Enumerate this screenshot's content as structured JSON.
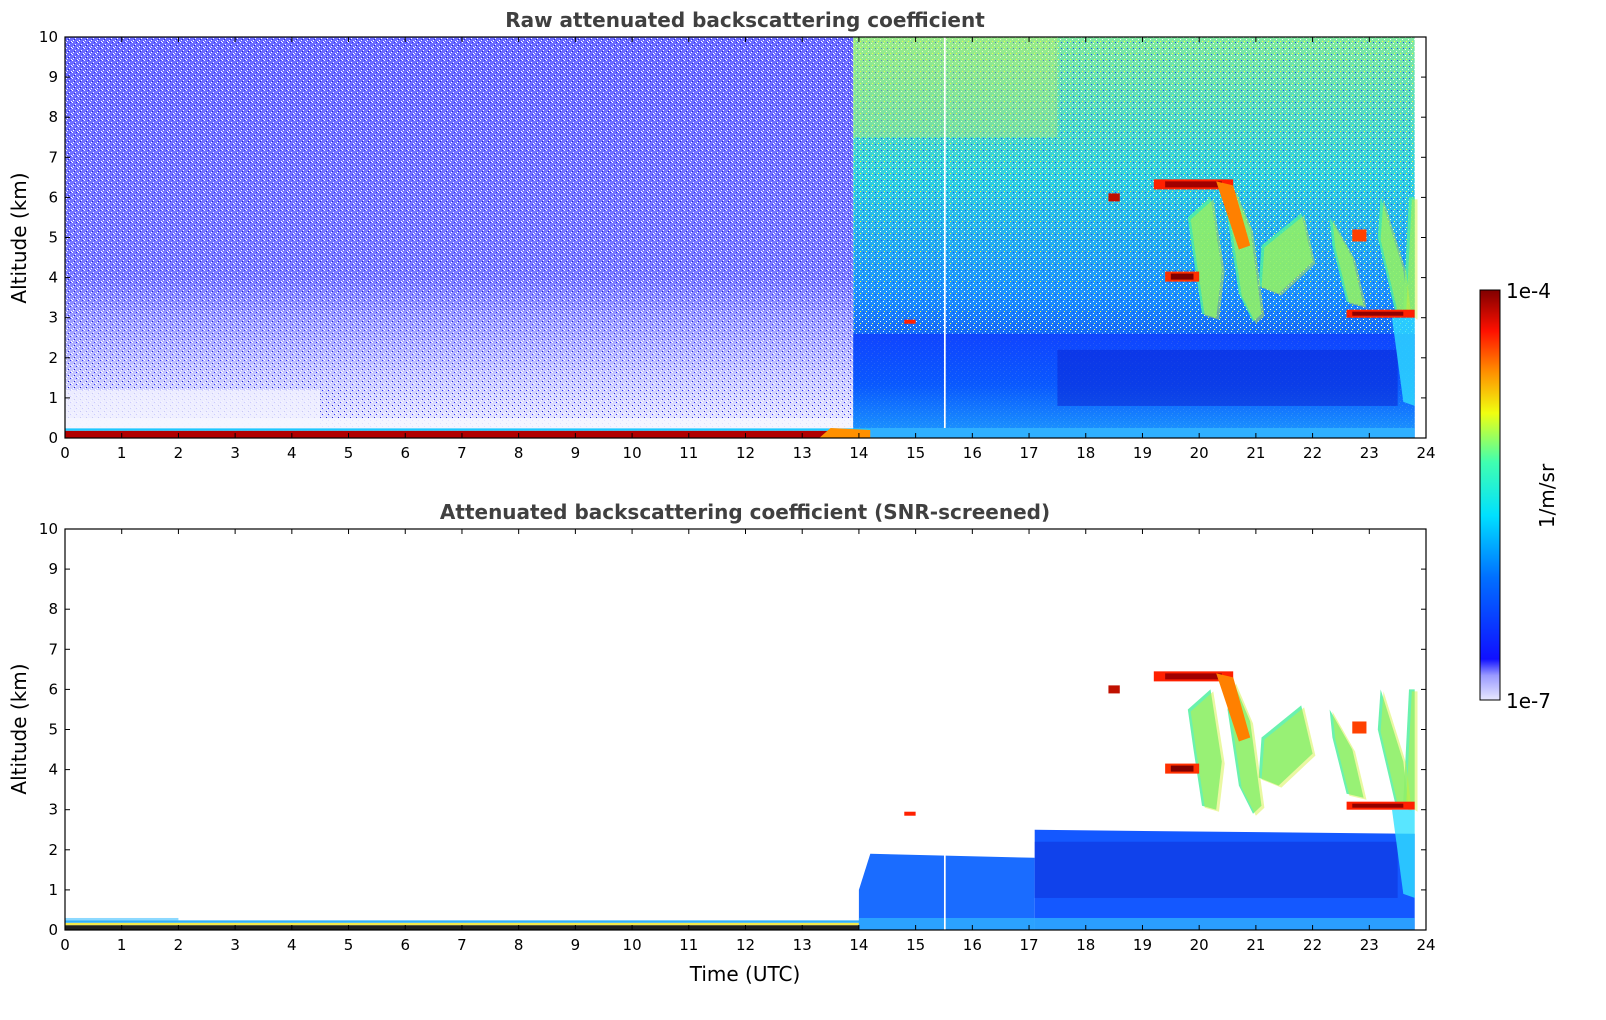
{
  "chart_data": [
    {
      "type": "heatmap",
      "title": "Raw attenuated backscattering coefficient",
      "xlabel": "",
      "ylabel": "Altitude (km)",
      "xlim": [
        0,
        24
      ],
      "ylim": [
        0,
        10
      ],
      "xticks": [
        0,
        1,
        2,
        3,
        4,
        5,
        6,
        7,
        8,
        9,
        10,
        11,
        12,
        13,
        14,
        15,
        16,
        17,
        18,
        19,
        20,
        21,
        22,
        23,
        24
      ],
      "yticks": [
        0,
        1,
        2,
        3,
        4,
        5,
        6,
        7,
        8,
        9,
        10
      ],
      "colormap": "jet",
      "grid": false,
      "features": [
        {
          "time": [
            0,
            13.9
          ],
          "altitude": [
            0,
            10
          ],
          "level": "low / sparse noise (night)"
        },
        {
          "time": [
            13.9,
            23.8
          ],
          "altitude": [
            0,
            10
          ],
          "level": "higher background (day)"
        },
        {
          "time": [
            0,
            14.2
          ],
          "altitude": [
            0,
            0.2
          ],
          "level": "saturated surface layer"
        },
        {
          "time": [
            13.9,
            23.8
          ],
          "altitude": [
            0,
            2.5
          ],
          "level": "boundary layer"
        },
        {
          "time": [
            19.2,
            20.6
          ],
          "altitude": [
            6.2,
            6.4
          ],
          "level": "strong cloud"
        },
        {
          "time": [
            18.4,
            18.6
          ],
          "altitude": [
            5.9,
            6.1
          ],
          "level": "strong cloud"
        },
        {
          "time": [
            19.4,
            20.0
          ],
          "altitude": [
            3.9,
            4.1
          ],
          "level": "strong cloud"
        },
        {
          "time": [
            22.6,
            23.8
          ],
          "altitude": [
            3.0,
            3.2
          ],
          "level": "strong cloud"
        },
        {
          "time": [
            19.8,
            23.8
          ],
          "altitude": [
            3.0,
            6.0
          ],
          "level": "cirrus fall streaks"
        }
      ]
    },
    {
      "type": "heatmap",
      "title": "Attenuated backscattering coefficient (SNR-screened)",
      "xlabel": "Time (UTC)",
      "ylabel": "Altitude (km)",
      "xlim": [
        0,
        24
      ],
      "ylim": [
        0,
        10
      ],
      "xticks": [
        0,
        1,
        2,
        3,
        4,
        5,
        6,
        7,
        8,
        9,
        10,
        11,
        12,
        13,
        14,
        15,
        16,
        17,
        18,
        19,
        20,
        21,
        22,
        23,
        24
      ],
      "yticks": [
        0,
        1,
        2,
        3,
        4,
        5,
        6,
        7,
        8,
        9,
        10
      ],
      "colormap": "jet",
      "grid": false,
      "features": [
        {
          "time": [
            0,
            14.2
          ],
          "altitude": [
            0,
            0.2
          ],
          "level": "surface layer"
        },
        {
          "time": [
            14.0,
            17.0
          ],
          "altitude": [
            0,
            1.8
          ],
          "level": "boundary layer"
        },
        {
          "time": [
            17.0,
            23.8
          ],
          "altitude": [
            0,
            2.5
          ],
          "level": "boundary layer"
        },
        {
          "time": [
            19.2,
            20.6
          ],
          "altitude": [
            6.2,
            6.4
          ],
          "level": "strong cloud"
        },
        {
          "time": [
            18.4,
            18.6
          ],
          "altitude": [
            5.9,
            6.1
          ],
          "level": "strong cloud"
        },
        {
          "time": [
            19.4,
            20.0
          ],
          "altitude": [
            3.9,
            4.1
          ],
          "level": "strong cloud"
        },
        {
          "time": [
            22.6,
            23.8
          ],
          "altitude": [
            3.0,
            3.2
          ],
          "level": "strong cloud"
        },
        {
          "time": [
            19.8,
            23.8
          ],
          "altitude": [
            3.0,
            6.0
          ],
          "level": "cirrus fall streaks"
        }
      ]
    }
  ],
  "colorbar": {
    "label": "1/m/sr",
    "min_label": "1e-7",
    "max_label": "1e-4",
    "colormap": "jet"
  }
}
